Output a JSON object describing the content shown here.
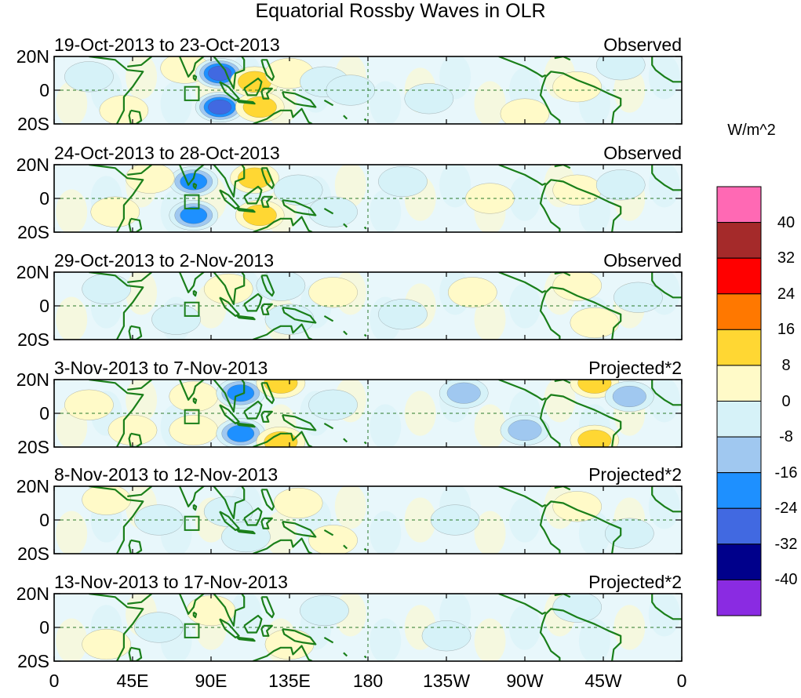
{
  "chart_data": {
    "type": "heatmap",
    "title": "Equatorial Rossby Waves in OLR",
    "x_ticks": [
      "0",
      "45E",
      "90E",
      "135E",
      "180",
      "135W",
      "90W",
      "45W",
      "0"
    ],
    "y_ticks": [
      "20N",
      "0",
      "20S"
    ],
    "xlim": [
      0,
      360
    ],
    "ylim": [
      -20,
      20
    ],
    "colorbar": {
      "unit": "W/m^2",
      "levels": [
        -40,
        -32,
        -24,
        -16,
        -8,
        0,
        8,
        16,
        24,
        32,
        40
      ],
      "labels": [
        "40",
        "32",
        "24",
        "16",
        "8",
        "0",
        "-8",
        "-16",
        "-24",
        "-32",
        "-40"
      ],
      "colors": [
        "#8a2be2",
        "#00008b",
        "#4169e1",
        "#1e90ff",
        "#a0c8f0",
        "#d6f2f8",
        "#fffac8",
        "#ffd733",
        "#ff7800",
        "#ff0000",
        "#a52a2a",
        "#ff69b4"
      ]
    },
    "panels": [
      {
        "label": "19-Oct-2013 to 23-Oct-2013",
        "status": "Observed",
        "anomalies": [
          {
            "lon": 75,
            "lat": 13,
            "v": 8
          },
          {
            "lon": 95,
            "lat": 10,
            "v": -30
          },
          {
            "lon": 95,
            "lat": -10,
            "v": -30
          },
          {
            "lon": 115,
            "lat": 5,
            "v": 12
          },
          {
            "lon": 118,
            "lat": -10,
            "v": 14
          },
          {
            "lon": 135,
            "lat": 10,
            "v": 10
          },
          {
            "lon": 155,
            "lat": 5,
            "v": -10
          },
          {
            "lon": 170,
            "lat": 0,
            "v": -8
          },
          {
            "lon": 215,
            "lat": -5,
            "v": -6
          },
          {
            "lon": 300,
            "lat": 2,
            "v": 8
          },
          {
            "lon": 325,
            "lat": 15,
            "v": -8
          },
          {
            "lon": 40,
            "lat": -12,
            "v": 6
          },
          {
            "lon": 20,
            "lat": 8,
            "v": -6
          },
          {
            "lon": 270,
            "lat": -14,
            "v": 5
          }
        ]
      },
      {
        "label": "24-Oct-2013 to 28-Oct-2013",
        "status": "Observed",
        "anomalies": [
          {
            "lon": 80,
            "lat": 10,
            "v": -20
          },
          {
            "lon": 80,
            "lat": -10,
            "v": -22
          },
          {
            "lon": 115,
            "lat": 12,
            "v": 18
          },
          {
            "lon": 118,
            "lat": -10,
            "v": 18
          },
          {
            "lon": 140,
            "lat": 5,
            "v": -10
          },
          {
            "lon": 160,
            "lat": -8,
            "v": -8
          },
          {
            "lon": 55,
            "lat": 12,
            "v": 8
          },
          {
            "lon": 35,
            "lat": -8,
            "v": 6
          },
          {
            "lon": 300,
            "lat": 5,
            "v": 10
          },
          {
            "lon": 325,
            "lat": 8,
            "v": -10
          },
          {
            "lon": 250,
            "lat": 0,
            "v": 5
          },
          {
            "lon": 200,
            "lat": 10,
            "v": -5
          }
        ]
      },
      {
        "label": "29-Oct-2013 to 2-Nov-2013",
        "status": "Observed",
        "anomalies": [
          {
            "lon": 70,
            "lat": -8,
            "v": -9
          },
          {
            "lon": 100,
            "lat": 10,
            "v": 8
          },
          {
            "lon": 130,
            "lat": 12,
            "v": -10
          },
          {
            "lon": 135,
            "lat": -8,
            "v": -10
          },
          {
            "lon": 160,
            "lat": 8,
            "v": 6
          },
          {
            "lon": 200,
            "lat": -5,
            "v": -6
          },
          {
            "lon": 300,
            "lat": 12,
            "v": 9
          },
          {
            "lon": 310,
            "lat": -10,
            "v": 8
          },
          {
            "lon": 335,
            "lat": 5,
            "v": -8
          },
          {
            "lon": 30,
            "lat": 10,
            "v": -6
          },
          {
            "lon": 240,
            "lat": 8,
            "v": 5
          }
        ]
      },
      {
        "label": "3-Nov-2013 to 7-Nov-2013",
        "status": "Projected*2",
        "anomalies": [
          {
            "lon": 80,
            "lat": 10,
            "v": 10
          },
          {
            "lon": 80,
            "lat": -10,
            "v": 10
          },
          {
            "lon": 107,
            "lat": 12,
            "v": -24
          },
          {
            "lon": 107,
            "lat": -12,
            "v": -22
          },
          {
            "lon": 130,
            "lat": 18,
            "v": 14
          },
          {
            "lon": 130,
            "lat": -17,
            "v": 14
          },
          {
            "lon": 160,
            "lat": 5,
            "v": -8
          },
          {
            "lon": 235,
            "lat": 12,
            "v": -12
          },
          {
            "lon": 270,
            "lat": -10,
            "v": -12
          },
          {
            "lon": 310,
            "lat": 18,
            "v": 16
          },
          {
            "lon": 310,
            "lat": -16,
            "v": 16
          },
          {
            "lon": 330,
            "lat": 10,
            "v": -14
          },
          {
            "lon": 20,
            "lat": 5,
            "v": 8
          },
          {
            "lon": 45,
            "lat": -10,
            "v": 6
          }
        ]
      },
      {
        "label": "8-Nov-2013 to 12-Nov-2013",
        "status": "Projected*2",
        "anomalies": [
          {
            "lon": 100,
            "lat": 5,
            "v": -8
          },
          {
            "lon": 110,
            "lat": -10,
            "v": -10
          },
          {
            "lon": 60,
            "lat": 0,
            "v": -6
          },
          {
            "lon": 140,
            "lat": 10,
            "v": 6
          },
          {
            "lon": 160,
            "lat": -12,
            "v": 5
          },
          {
            "lon": 230,
            "lat": 0,
            "v": -5
          },
          {
            "lon": 300,
            "lat": 8,
            "v": 5
          },
          {
            "lon": 30,
            "lat": 12,
            "v": 5
          },
          {
            "lon": 330,
            "lat": -8,
            "v": -5
          }
        ]
      },
      {
        "label": "13-Nov-2013 to 17-Nov-2013",
        "status": "Projected*2",
        "anomalies": [
          {
            "lon": 60,
            "lat": 0,
            "v": -6
          },
          {
            "lon": 90,
            "lat": 10,
            "v": 5
          },
          {
            "lon": 135,
            "lat": -10,
            "v": 6
          },
          {
            "lon": 155,
            "lat": 10,
            "v": -5
          },
          {
            "lon": 225,
            "lat": -5,
            "v": -5
          },
          {
            "lon": 300,
            "lat": 12,
            "v": -5
          },
          {
            "lon": 30,
            "lat": -10,
            "v": 5
          }
        ]
      }
    ]
  },
  "colors": {
    "coast": "#1a7f1a",
    "frame": "#000000",
    "box": "#1a7f1a"
  }
}
